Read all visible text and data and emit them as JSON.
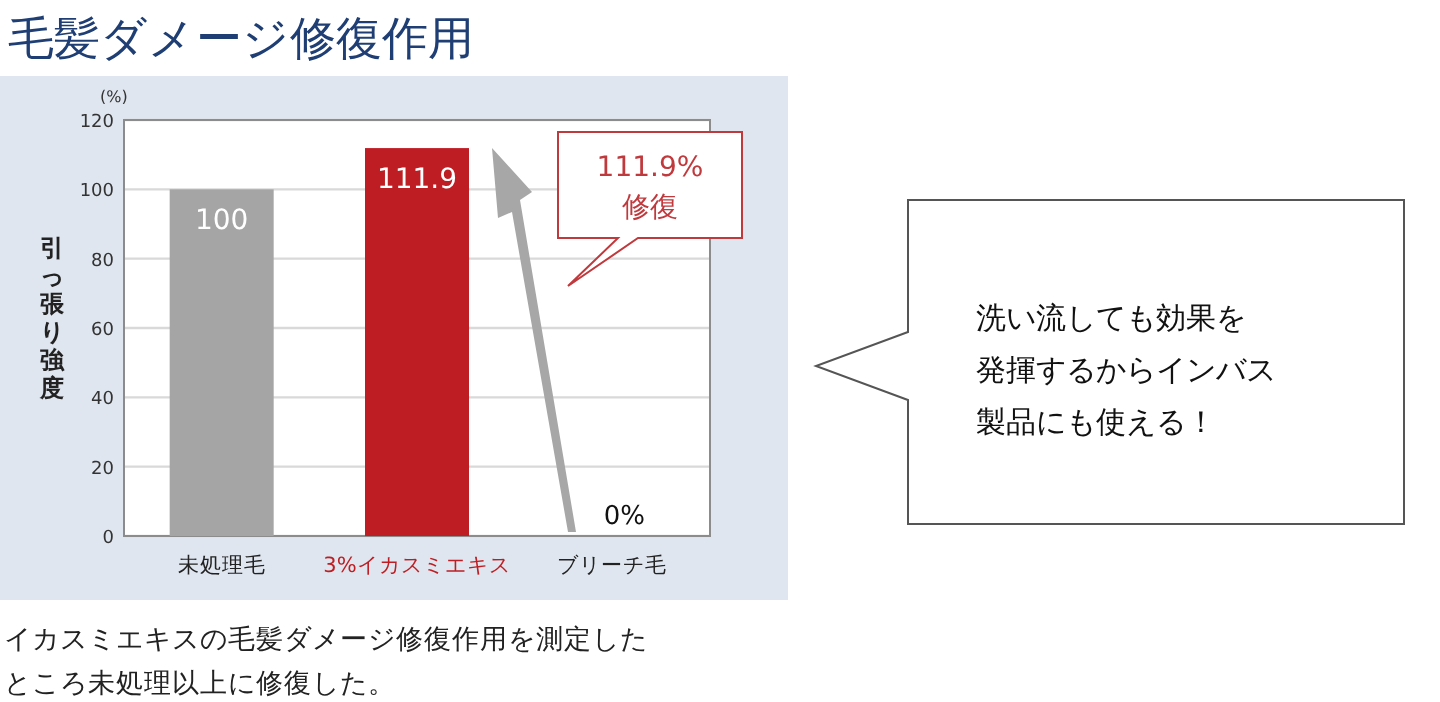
{
  "chart_data": {
    "type": "bar",
    "title": "毛髪ダメージ修復作用",
    "ylabel": "引っ張り強度",
    "categories": [
      "未処理毛",
      "3%イカスミエキス",
      "ブリーチ毛"
    ],
    "values": [
      100,
      111.9,
      0
    ],
    "colors": [
      "#a5a5a5",
      "#be1e23",
      "#a5a5a5"
    ],
    "value_labels": [
      "100",
      "111.9",
      "0%"
    ],
    "ylim": [
      0,
      120
    ],
    "yticks": [
      0,
      20,
      40,
      60,
      80,
      100,
      120
    ],
    "grid": "y",
    "annotations": [
      "(%)",
      "111.9%\n修復",
      "洗い流しても効果を",
      "発揮するからインバス",
      "製品にも使える！",
      "イカスミエキスの毛髪ダメージ修復作用を測定した",
      "ところ未処理以上に修復した。"
    ]
  }
}
